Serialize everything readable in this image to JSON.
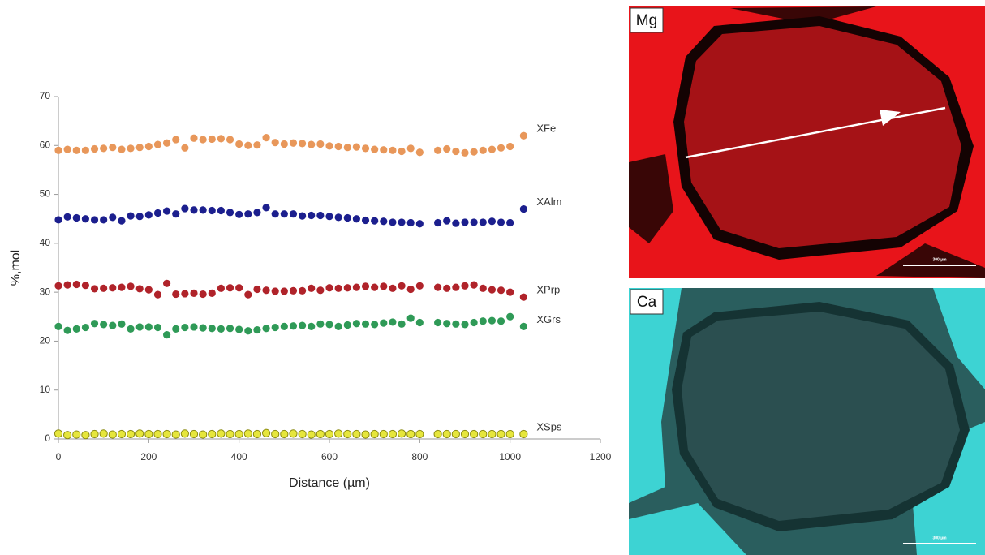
{
  "chart_data": {
    "type": "scatter",
    "xlabel": "Distance (µm)",
    "ylabel": "%,mol",
    "xlim": [
      0,
      1200
    ],
    "xticks": [
      0,
      200,
      400,
      600,
      800,
      1000,
      1200
    ],
    "ylim": [
      0,
      70
    ],
    "yticks": [
      0,
      10,
      20,
      30,
      40,
      50,
      60,
      70
    ],
    "x": [
      0,
      20,
      40,
      60,
      80,
      100,
      120,
      140,
      160,
      180,
      200,
      220,
      240,
      260,
      280,
      300,
      320,
      340,
      360,
      380,
      400,
      420,
      440,
      460,
      480,
      500,
      520,
      540,
      560,
      580,
      600,
      620,
      640,
      660,
      680,
      700,
      720,
      740,
      760,
      780,
      800,
      840,
      860,
      880,
      900,
      920,
      940,
      960,
      980,
      1000,
      1030
    ],
    "series": [
      {
        "name": "XFe",
        "color": "#e8975a",
        "values": [
          59,
          59.2,
          59,
          59,
          59.3,
          59.4,
          59.6,
          59.2,
          59.4,
          59.6,
          59.8,
          60.2,
          60.5,
          61.2,
          59.5,
          61.5,
          61.2,
          61.3,
          61.4,
          61.2,
          60.3,
          60,
          60.1,
          61.6,
          60.6,
          60.3,
          60.5,
          60.4,
          60.2,
          60.3,
          59.9,
          59.8,
          59.6,
          59.7,
          59.4,
          59.2,
          59.1,
          59,
          58.8,
          59.4,
          58.6,
          59,
          59.3,
          58.8,
          58.5,
          58.7,
          59,
          59.2,
          59.5,
          59.8,
          62
        ]
      },
      {
        "name": "XAlm",
        "color": "#1c1f8e",
        "values": [
          44.8,
          45.4,
          45.2,
          45,
          44.8,
          44.8,
          45.3,
          44.6,
          45.6,
          45.5,
          45.8,
          46.2,
          46.6,
          46,
          47.1,
          46.8,
          46.8,
          46.7,
          46.7,
          46.3,
          45.9,
          46,
          46.3,
          47.3,
          46,
          46,
          46,
          45.6,
          45.7,
          45.7,
          45.5,
          45.3,
          45.2,
          45,
          44.7,
          44.6,
          44.5,
          44.3,
          44.3,
          44.2,
          44,
          44.2,
          44.6,
          44.1,
          44.3,
          44.3,
          44.3,
          44.5,
          44.3,
          44.2,
          47
        ]
      },
      {
        "name": "XPrp",
        "color": "#b0232a",
        "values": [
          31.3,
          31.5,
          31.6,
          31.4,
          30.7,
          30.8,
          30.9,
          31,
          31.2,
          30.7,
          30.5,
          29.5,
          31.8,
          29.6,
          29.7,
          29.8,
          29.6,
          29.8,
          30.8,
          30.9,
          30.9,
          29.5,
          30.6,
          30.4,
          30.2,
          30.2,
          30.3,
          30.3,
          30.8,
          30.4,
          30.9,
          30.8,
          30.9,
          31,
          31.2,
          31,
          31.2,
          30.8,
          31.3,
          30.6,
          31.3,
          31,
          30.8,
          31,
          31.3,
          31.5,
          30.8,
          30.5,
          30.4,
          30,
          29
        ]
      },
      {
        "name": "XGrs",
        "color": "#2f9a57",
        "values": [
          23,
          22.2,
          22.5,
          22.8,
          23.6,
          23.4,
          23.2,
          23.5,
          22.5,
          22.9,
          22.9,
          22.8,
          21.3,
          22.5,
          22.8,
          22.9,
          22.7,
          22.6,
          22.5,
          22.6,
          22.4,
          22.1,
          22.3,
          22.6,
          22.8,
          23,
          23.1,
          23.2,
          23,
          23.5,
          23.4,
          23,
          23.3,
          23.6,
          23.5,
          23.4,
          23.7,
          23.9,
          23.5,
          24.7,
          23.8,
          23.8,
          23.6,
          23.5,
          23.4,
          23.8,
          24.1,
          24.2,
          24.1,
          25,
          23
        ]
      },
      {
        "name": "XSps",
        "color": "#e6e63c",
        "values": [
          1.1,
          0.8,
          0.9,
          0.8,
          1,
          1.1,
          0.9,
          1,
          1,
          1.1,
          1,
          1,
          1,
          0.9,
          1.1,
          1,
          0.9,
          1,
          1.1,
          1,
          1,
          1.1,
          1,
          1.2,
          1,
          1,
          1.1,
          1,
          0.9,
          1,
          1,
          1.1,
          1,
          1,
          0.9,
          1,
          1,
          1,
          1.1,
          1,
          1,
          1,
          1,
          1,
          1,
          1,
          1,
          1,
          1,
          1,
          1
        ]
      }
    ]
  },
  "maps": [
    {
      "label": "Mg",
      "scale": "300 µm"
    },
    {
      "label": "Ca",
      "scale": "300 µm"
    }
  ]
}
